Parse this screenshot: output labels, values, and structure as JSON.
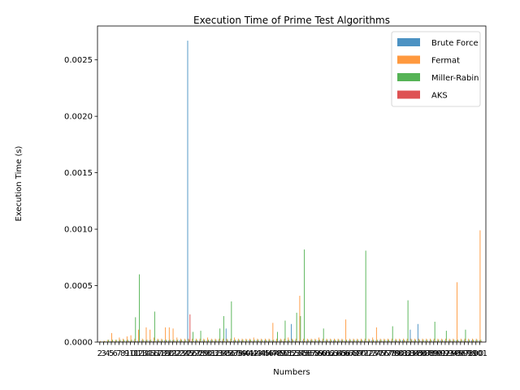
{
  "chart_data": {
    "type": "bar",
    "title": "Execution Time of Prime Test Algorithms",
    "xlabel": "Numbers",
    "ylabel": "Execution Time (s)",
    "ylim": [
      0,
      0.0028
    ],
    "yticks": [
      "0.0000",
      "0.0005",
      "0.0010",
      "0.0015",
      "0.0020",
      "0.0025"
    ],
    "ytick_values": [
      0,
      0.0005,
      0.001,
      0.0015,
      0.002,
      0.0025
    ],
    "grid": false,
    "legend_position": "top-right",
    "colors": {
      "Brute Force": "#1f77b4",
      "Fermat": "#ff7f0e",
      "Miller-Rabin": "#2ca02c",
      "AKS": "#d62728"
    },
    "categories": [
      "2",
      "3",
      "4",
      "5",
      "6",
      "7",
      "8",
      "9",
      "10",
      "11",
      "12",
      "13",
      "14",
      "15",
      "16",
      "17",
      "18",
      "19",
      "20",
      "21",
      "22",
      "23",
      "24",
      "25",
      "26",
      "27",
      "28",
      "29",
      "30",
      "31",
      "32",
      "33",
      "34",
      "35",
      "36",
      "37",
      "38",
      "39",
      "40",
      "41",
      "42",
      "43",
      "44",
      "45",
      "46",
      "47",
      "48",
      "49",
      "50",
      "51",
      "52",
      "53",
      "54",
      "55",
      "56",
      "57",
      "58",
      "59",
      "60",
      "61",
      "62",
      "63",
      "64",
      "65",
      "66",
      "67",
      "68",
      "69",
      "70",
      "71",
      "72",
      "73",
      "74",
      "75",
      "76",
      "77",
      "78",
      "79",
      "80",
      "81",
      "82",
      "83",
      "84",
      "85",
      "86",
      "87",
      "88",
      "89",
      "90",
      "91",
      "92",
      "93",
      "94",
      "95",
      "96",
      "97",
      "98",
      "99",
      "100",
      "101"
    ],
    "series": [
      {
        "name": "Brute Force",
        "values": [
          4e-06,
          5e-06,
          6e-06,
          8e-06,
          6e-06,
          9e-06,
          8e-06,
          1.2e-05,
          1e-05,
          1.3e-05,
          1.1e-05,
          1.4e-05,
          1.2e-05,
          1.5e-05,
          1e-05,
          1.6e-05,
          1.2e-05,
          1.5e-05,
          1.3e-05,
          1.4e-05,
          1.2e-05,
          1.5e-05,
          1.1e-05,
          0.00267,
          1e-05,
          1.4e-05,
          1.2e-05,
          1.5e-05,
          1.1e-05,
          1.6e-05,
          1.2e-05,
          1.4e-05,
          1.3e-05,
          0.00012,
          1.1e-05,
          1.5e-05,
          1.2e-05,
          1.4e-05,
          1.1e-05,
          1.6e-05,
          1.2e-05,
          1.5e-05,
          1.3e-05,
          1.4e-05,
          1.2e-05,
          1.5e-05,
          1.1e-05,
          1.6e-05,
          1.2e-05,
          1.4e-05,
          0.00016,
          1.5e-05,
          1.2e-05,
          1.4e-05,
          1.1e-05,
          1.6e-05,
          1.2e-05,
          1.5e-05,
          1.3e-05,
          1.4e-05,
          1.2e-05,
          1.5e-05,
          1.1e-05,
          1.6e-05,
          1.2e-05,
          1.4e-05,
          1.3e-05,
          1.5e-05,
          1.2e-05,
          1.4e-05,
          1.1e-05,
          1.6e-05,
          1.2e-05,
          1.5e-05,
          1.3e-05,
          1.4e-05,
          1.2e-05,
          1.5e-05,
          1.1e-05,
          1.6e-05,
          1.2e-05,
          0.00011,
          1.3e-05,
          0.00016,
          1.2e-05,
          1.4e-05,
          1.1e-05,
          1.6e-05,
          1.2e-05,
          1.5e-05,
          1.3e-05,
          1.4e-05,
          1.2e-05,
          1.5e-05,
          1.1e-05,
          1.6e-05,
          1.2e-05,
          1.4e-05,
          1.3e-05,
          1.5e-05
        ]
      },
      {
        "name": "Fermat",
        "values": [
          1e-05,
          1.2e-05,
          2e-05,
          8e-05,
          2e-05,
          4e-05,
          3e-05,
          5e-05,
          6e-05,
          3e-05,
          0.00011,
          3e-05,
          0.00013,
          0.00011,
          4e-05,
          3e-05,
          3e-05,
          0.00013,
          0.00013,
          0.00012,
          4e-05,
          3e-05,
          3e-05,
          3e-05,
          3e-05,
          3e-05,
          3e-05,
          3e-05,
          4e-05,
          3e-05,
          3e-05,
          3e-05,
          3e-05,
          3e-05,
          3e-05,
          4e-05,
          3e-05,
          3e-05,
          3e-05,
          3e-05,
          4e-05,
          3e-05,
          3e-05,
          3e-05,
          3e-05,
          0.00017,
          3e-05,
          3e-05,
          3e-05,
          4e-05,
          3e-05,
          3e-05,
          0.00041,
          3e-05,
          3e-05,
          3e-05,
          3e-05,
          4e-05,
          3e-05,
          3e-05,
          3e-05,
          3e-05,
          3e-05,
          3e-05,
          0.0002,
          3e-05,
          3e-05,
          3e-05,
          3e-05,
          3e-05,
          3e-05,
          4e-05,
          0.00013,
          3e-05,
          3e-05,
          3e-05,
          3e-05,
          3e-05,
          3e-05,
          3e-05,
          3e-05,
          3e-05,
          3e-05,
          3e-05,
          3e-05,
          3e-05,
          3e-05,
          3e-05,
          3e-05,
          3e-05,
          3e-05,
          3e-05,
          3e-05,
          0.00053,
          3e-05,
          3e-05,
          3e-05,
          3e-05,
          3e-05,
          0.00099
        ]
      },
      {
        "name": "Miller-Rabin",
        "values": [
          5e-06,
          8e-06,
          2e-05,
          2e-05,
          2e-05,
          2e-05,
          2e-05,
          2e-05,
          2e-05,
          0.00022,
          0.0006,
          2e-05,
          2e-05,
          2e-05,
          0.00027,
          2e-05,
          2e-05,
          2e-05,
          2e-05,
          2e-05,
          2e-05,
          2e-05,
          2e-05,
          2e-05,
          9e-05,
          2e-05,
          0.0001,
          2e-05,
          2e-05,
          2e-05,
          2e-05,
          0.00012,
          0.00023,
          2e-05,
          0.00036,
          2e-05,
          2e-05,
          2e-05,
          2e-05,
          2e-05,
          2e-05,
          2e-05,
          2e-05,
          2e-05,
          2e-05,
          2e-05,
          9e-05,
          2e-05,
          0.00019,
          2e-05,
          2e-05,
          0.00026,
          0.00023,
          0.00082,
          2e-05,
          2e-05,
          2e-05,
          2e-05,
          0.00012,
          2e-05,
          2e-05,
          2e-05,
          2e-05,
          2e-05,
          2e-05,
          2e-05,
          2e-05,
          2e-05,
          2e-05,
          0.00081,
          2e-05,
          2e-05,
          2e-05,
          2e-05,
          2e-05,
          2e-05,
          0.00014,
          2e-05,
          2e-05,
          2e-05,
          0.00037,
          2e-05,
          2e-05,
          2e-05,
          2e-05,
          2e-05,
          2e-05,
          0.00018,
          2e-05,
          2e-05,
          0.0001,
          2e-05,
          2e-05,
          2e-05,
          2e-05,
          0.00011,
          2e-05,
          2e-05,
          2e-05,
          2e-05
        ]
      },
      {
        "name": "AKS",
        "values": [
          3e-06,
          4e-06,
          5e-06,
          6e-06,
          5e-06,
          6e-06,
          5e-06,
          7e-06,
          6e-06,
          7e-06,
          6e-06,
          7e-06,
          6e-06,
          7e-06,
          6e-06,
          7e-06,
          6e-06,
          7e-06,
          6e-06,
          7e-06,
          6e-06,
          7e-06,
          6e-06,
          0.000245,
          6e-06,
          7e-06,
          6e-06,
          7e-06,
          6e-06,
          7e-06,
          6e-06,
          7e-06,
          6e-06,
          7e-06,
          6e-06,
          7e-06,
          6e-06,
          7e-06,
          6e-06,
          7e-06,
          6e-06,
          7e-06,
          6e-06,
          7e-06,
          6e-06,
          7e-06,
          6e-06,
          7e-06,
          6e-06,
          7e-06,
          6e-06,
          7e-06,
          6e-06,
          7e-06,
          6e-06,
          7e-06,
          6e-06,
          7e-06,
          6e-06,
          7e-06,
          6e-06,
          7e-06,
          6e-06,
          7e-06,
          6e-06,
          7e-06,
          6e-06,
          7e-06,
          6e-06,
          7e-06,
          6e-06,
          7e-06,
          6e-06,
          7e-06,
          6e-06,
          7e-06,
          6e-06,
          7e-06,
          6e-06,
          7e-06,
          6e-06,
          7e-06,
          6e-06,
          7e-06,
          6e-06,
          7e-06,
          6e-06,
          7e-06,
          6e-06,
          7e-06,
          6e-06,
          7e-06,
          6e-06,
          7e-06,
          6e-06,
          7e-06,
          6e-06,
          7e-06,
          6e-06,
          7e-06
        ]
      }
    ]
  }
}
